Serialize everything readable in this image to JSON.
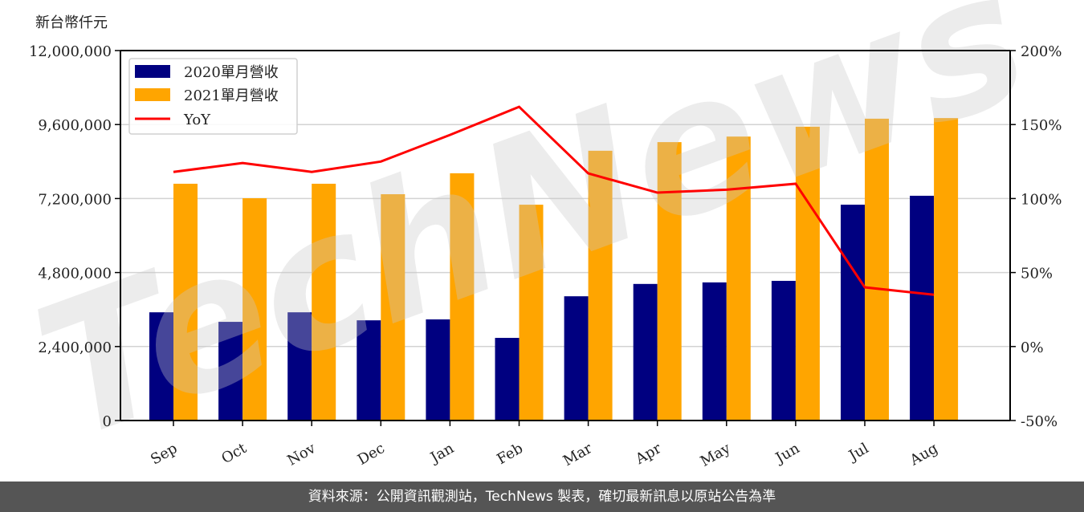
{
  "unit_label": "新台幣仟元",
  "footer": {
    "text": "資料來源：公開資訊觀測站，TechNews 製表，確切最新訊息以原站公告為準"
  },
  "watermark": {
    "text": "TechNews"
  },
  "colors": {
    "series_2020": "#000080",
    "series_2021": "#FFA500",
    "yoy": "#FF0000",
    "grid": "#d3d3d3",
    "footer_bg": "#555555"
  },
  "chart_data": {
    "type": "bar",
    "title": "",
    "xlabel": "",
    "ylabel": "新台幣仟元",
    "y2label": "",
    "categories": [
      "Sep",
      "Oct",
      "Nov",
      "Dec",
      "Jan",
      "Feb",
      "Mar",
      "Apr",
      "May",
      "Jun",
      "Jul",
      "Aug"
    ],
    "series": [
      {
        "name": "2020單月營收",
        "type": "bar",
        "axis": "left",
        "color": "#000080",
        "values": [
          3510000,
          3200000,
          3510000,
          3250000,
          3280000,
          2680000,
          4030000,
          4430000,
          4480000,
          4530000,
          7000000,
          7290000
        ]
      },
      {
        "name": "2021單月營收",
        "type": "bar",
        "axis": "left",
        "color": "#FFA500",
        "values": [
          7680000,
          7210000,
          7680000,
          7340000,
          8020000,
          7000000,
          8750000,
          9030000,
          9210000,
          9530000,
          9790000,
          9810000
        ]
      },
      {
        "name": "YoY",
        "type": "line",
        "axis": "right",
        "color": "#FF0000",
        "values": [
          118,
          124,
          118,
          125,
          143,
          162,
          117,
          104,
          106,
          110,
          40,
          35
        ]
      }
    ],
    "ylim": [
      0,
      12000000
    ],
    "y2lim": [
      -50,
      200
    ],
    "yticks": [
      0,
      2400000,
      4800000,
      7200000,
      9600000,
      12000000
    ],
    "ytick_labels": [
      "0",
      "2,400,000",
      "4,800,000",
      "7,200,000",
      "9,600,000",
      "12,000,000"
    ],
    "y2ticks": [
      -50,
      0,
      50,
      100,
      150,
      200
    ],
    "y2tick_labels": [
      "-50%",
      "0%",
      "50%",
      "100%",
      "150%",
      "200%"
    ],
    "grid": true,
    "legend_position": "upper left",
    "xtick_rotation": 30
  }
}
